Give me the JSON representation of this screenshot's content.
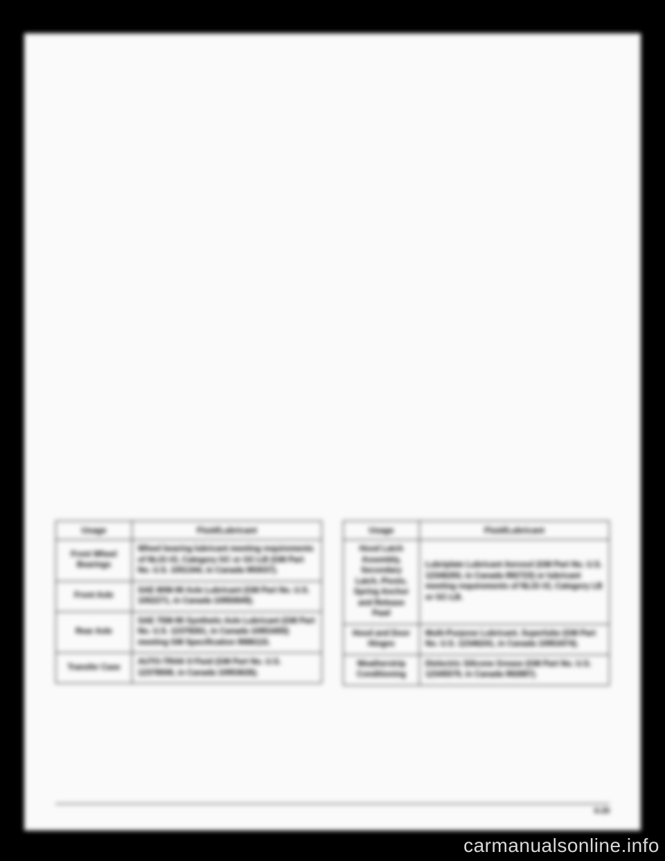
{
  "table_left": {
    "headers": [
      "Usage",
      "Fluid/Lubricant"
    ],
    "rows": [
      {
        "usage": "Front Wheel Bearings",
        "fluid": "Wheel bearing lubricant meeting requirements of NLGI #2, Category GC or GC-LB (GM Part No. U.S. 1051344, in Canada 993037)."
      },
      {
        "usage": "Front Axle",
        "fluid": "SAE 80W-90 Axle Lubricant (GM Part No. U.S. 1052271, in Canada 10950849)."
      },
      {
        "usage": "Rear Axle",
        "fluid": "SAE 75W-90 Synthetic Axle Lubricant (GM Part No. U.S. 12378261, in Canada 10953455) meeting GM Specification 9986115."
      },
      {
        "usage": "Transfer Case",
        "fluid": "AUTO-TRAK II Fluid (GM Part No. U.S. 12378508, in Canada 10953626)."
      }
    ]
  },
  "table_right": {
    "headers": [
      "Usage",
      "Fluid/Lubricant"
    ],
    "rows": [
      {
        "usage": "Hood Latch Assembly, Secondary Latch, Pivots, Spring Anchor and Release Pawl",
        "fluid": "Lubriplate Lubricant Aerosol (GM Part No. U.S. 12346293, in Canada 992723) or lubricant meeting requirements of NLGI #2, Category LB or GC-LB."
      },
      {
        "usage": "Hood and Door Hinges",
        "fluid": "Multi-Purpose Lubricant, Superlube (GM Part No. U.S. 12346241, in Canada 10953474)."
      },
      {
        "usage": "Weatherstrip Conditioning",
        "fluid": "Dielectric Silicone Grease (GM Part No. U.S. 12345579, in Canada 992887)."
      }
    ]
  },
  "page_number": "6-29",
  "watermark": "carmanualsonline.info",
  "colors": {
    "page_bg": "#000000",
    "doc_bg": "#ffffff",
    "border": "#000000",
    "text": "#000000",
    "watermark": "#d9d9d9"
  },
  "typography": {
    "header_fontsize": 12,
    "cell_fontsize": 11.5,
    "pagenum_fontsize": 11,
    "watermark_fontsize": 28
  }
}
